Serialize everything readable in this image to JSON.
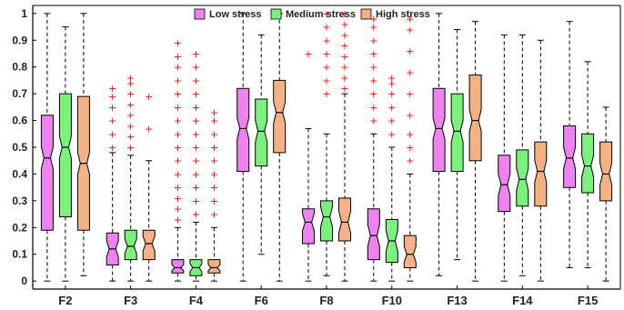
{
  "chart_data": {
    "type": "box",
    "title": "",
    "xlabel": "",
    "ylabel": "",
    "ylim": [
      -0.03,
      1.03
    ],
    "yticks": [
      "0",
      "0.1",
      "0.2",
      "0.3",
      "0.4",
      "0.5",
      "0.6",
      "0.7",
      "0.8",
      "0.9",
      "1"
    ],
    "categories": [
      "F2",
      "F3",
      "F4",
      "F6",
      "F8",
      "F10",
      "F13",
      "F14",
      "F15"
    ],
    "legend_position": "top-center",
    "series": [
      {
        "name": "Low stress",
        "color": "#ee82ee",
        "boxes": [
          {
            "whisker_low": 0.0,
            "q1": 0.19,
            "median": 0.46,
            "q3": 0.62,
            "whisker_high": 1.0,
            "outliers": []
          },
          {
            "whisker_low": 0.0,
            "q1": 0.06,
            "median": 0.12,
            "q3": 0.18,
            "whisker_high": 0.48,
            "outliers": [
              0.5,
              0.55,
              0.6,
              0.65,
              0.69,
              0.72
            ]
          },
          {
            "whisker_low": 0.0,
            "q1": 0.03,
            "median": 0.05,
            "q3": 0.08,
            "whisker_high": 0.2,
            "outliers": [
              0.23,
              0.27,
              0.31,
              0.35,
              0.4,
              0.45,
              0.5,
              0.55,
              0.6,
              0.65,
              0.7,
              0.75,
              0.8,
              0.84,
              0.89
            ]
          },
          {
            "whisker_low": 0.0,
            "q1": 0.41,
            "median": 0.57,
            "q3": 0.72,
            "whisker_high": 1.0,
            "outliers": []
          },
          {
            "whisker_low": 0.0,
            "q1": 0.14,
            "median": 0.22,
            "q3": 0.27,
            "whisker_high": 0.57,
            "outliers": [
              0.85
            ]
          },
          {
            "whisker_low": 0.0,
            "q1": 0.08,
            "median": 0.17,
            "q3": 0.27,
            "whisker_high": 0.55,
            "outliers": [
              0.6,
              0.65,
              0.7,
              0.75,
              0.8,
              0.85,
              0.9,
              0.95,
              0.98
            ]
          },
          {
            "whisker_low": 0.02,
            "q1": 0.41,
            "median": 0.57,
            "q3": 0.72,
            "whisker_high": 1.0,
            "outliers": []
          },
          {
            "whisker_low": 0.0,
            "q1": 0.26,
            "median": 0.36,
            "q3": 0.47,
            "whisker_high": 0.92,
            "outliers": []
          },
          {
            "whisker_low": 0.05,
            "q1": 0.35,
            "median": 0.46,
            "q3": 0.58,
            "whisker_high": 0.97,
            "outliers": []
          }
        ]
      },
      {
        "name": "Medium stress",
        "color": "#7cf27c",
        "boxes": [
          {
            "whisker_low": 0.0,
            "q1": 0.24,
            "median": 0.5,
            "q3": 0.7,
            "whisker_high": 0.95,
            "outliers": []
          },
          {
            "whisker_low": 0.0,
            "q1": 0.08,
            "median": 0.13,
            "q3": 0.19,
            "whisker_high": 0.47,
            "outliers": [
              0.5,
              0.54,
              0.58,
              0.62,
              0.66,
              0.7,
              0.74,
              0.76
            ]
          },
          {
            "whisker_low": 0.0,
            "q1": 0.02,
            "median": 0.05,
            "q3": 0.08,
            "whisker_high": 0.22,
            "outliers": [
              0.25,
              0.3,
              0.35,
              0.4,
              0.45,
              0.5,
              0.55,
              0.6,
              0.65,
              0.7,
              0.75,
              0.8,
              0.85
            ]
          },
          {
            "whisker_low": 0.1,
            "q1": 0.43,
            "median": 0.56,
            "q3": 0.68,
            "whisker_high": 0.92,
            "outliers": []
          },
          {
            "whisker_low": 0.02,
            "q1": 0.15,
            "median": 0.24,
            "q3": 0.3,
            "whisker_high": 0.55,
            "outliers": [
              0.7,
              0.75,
              0.8,
              0.85,
              0.9,
              0.95,
              1.0
            ]
          },
          {
            "whisker_low": 0.0,
            "q1": 0.07,
            "median": 0.15,
            "q3": 0.23,
            "whisker_high": 0.5,
            "outliers": [
              0.55,
              0.6,
              0.65,
              0.7,
              0.74,
              0.76
            ]
          },
          {
            "whisker_low": 0.08,
            "q1": 0.41,
            "median": 0.56,
            "q3": 0.7,
            "whisker_high": 0.94,
            "outliers": []
          },
          {
            "whisker_low": 0.02,
            "q1": 0.28,
            "median": 0.38,
            "q3": 0.49,
            "whisker_high": 0.92,
            "outliers": []
          },
          {
            "whisker_low": 0.05,
            "q1": 0.33,
            "median": 0.43,
            "q3": 0.55,
            "whisker_high": 0.82,
            "outliers": []
          }
        ]
      },
      {
        "name": "High stress",
        "color": "#f4b183",
        "boxes": [
          {
            "whisker_low": 0.02,
            "q1": 0.19,
            "median": 0.44,
            "q3": 0.69,
            "whisker_high": 1.0,
            "outliers": []
          },
          {
            "whisker_low": 0.0,
            "q1": 0.08,
            "median": 0.14,
            "q3": 0.19,
            "whisker_high": 0.45,
            "outliers": [
              0.57,
              0.69
            ]
          },
          {
            "whisker_low": 0.0,
            "q1": 0.03,
            "median": 0.05,
            "q3": 0.08,
            "whisker_high": 0.2,
            "outliers": [
              0.25,
              0.3,
              0.35,
              0.4,
              0.45,
              0.5,
              0.55,
              0.6,
              0.63
            ]
          },
          {
            "whisker_low": 0.0,
            "q1": 0.48,
            "median": 0.63,
            "q3": 0.75,
            "whisker_high": 1.0,
            "outliers": []
          },
          {
            "whisker_low": 0.0,
            "q1": 0.15,
            "median": 0.22,
            "q3": 0.31,
            "whisker_high": 0.7,
            "outliers": [
              0.72,
              0.76,
              0.8,
              0.84,
              0.88,
              0.92,
              0.96,
              1.0
            ]
          },
          {
            "whisker_low": 0.0,
            "q1": 0.05,
            "median": 0.1,
            "q3": 0.17,
            "whisker_high": 0.4,
            "outliers": [
              0.45,
              0.5,
              0.55,
              0.62,
              0.7,
              0.78,
              0.86,
              0.94,
              0.98
            ]
          },
          {
            "whisker_low": 0.0,
            "q1": 0.45,
            "median": 0.6,
            "q3": 0.77,
            "whisker_high": 0.97,
            "outliers": []
          },
          {
            "whisker_low": 0.0,
            "q1": 0.28,
            "median": 0.41,
            "q3": 0.52,
            "whisker_high": 0.9,
            "outliers": []
          },
          {
            "whisker_low": 0.0,
            "q1": 0.3,
            "median": 0.4,
            "q3": 0.52,
            "whisker_high": 0.65,
            "outliers": []
          }
        ]
      }
    ]
  }
}
